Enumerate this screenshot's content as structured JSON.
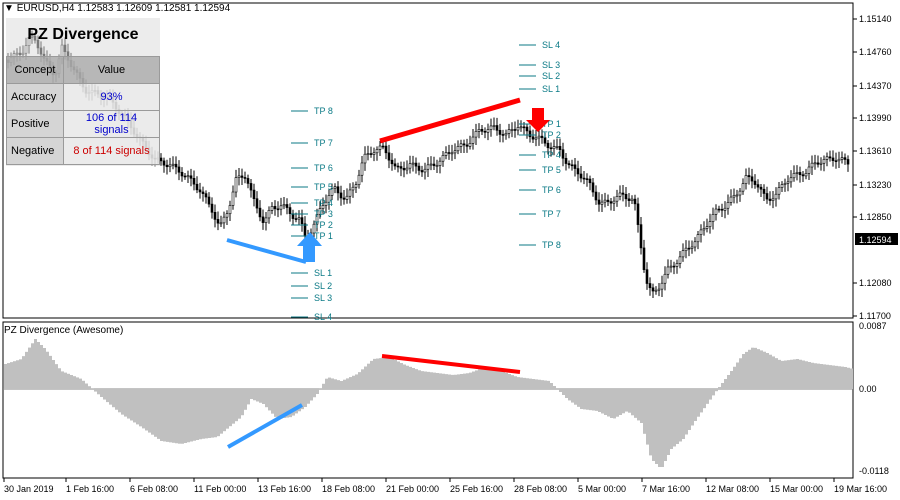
{
  "header": {
    "title": "EURUSD,H4  1.12583 1.12609 1.12581 1.12594"
  },
  "panel": {
    "title": "PZ Divergence",
    "columns": [
      "Concept",
      "Value"
    ],
    "rows": [
      {
        "concept": "Accuracy",
        "value": "93%",
        "color": "#0000cc"
      },
      {
        "concept": "Positive",
        "value": "106 of 114 signals",
        "color": "#0000cc"
      },
      {
        "concept": "Negative",
        "value": "8 of 114 signals",
        "color": "#cc0000"
      }
    ]
  },
  "price_axis": {
    "labels": [
      "1.15140",
      "1.14760",
      "1.14370",
      "1.13990",
      "1.13610",
      "1.13230",
      "1.12850",
      "1.12080",
      "1.11700"
    ],
    "current": "1.12594"
  },
  "indicator": {
    "title": "PZ Divergence (Awesome)",
    "axis": [
      "0.0087",
      "0.00",
      "-0.0118"
    ]
  },
  "time_axis": [
    "30 Jan 2019",
    "1 Feb 16:00",
    "6 Feb 08:00",
    "11 Feb 00:00",
    "13 Feb 16:00",
    "18 Feb 08:00",
    "21 Feb 00:00",
    "25 Feb 16:00",
    "28 Feb 08:00",
    "5 Mar 00:00",
    "7 Mar 16:00",
    "12 Mar 08:00",
    "15 Mar 00:00",
    "19 Mar 16:00"
  ],
  "buy_levels": {
    "tp": [
      "TP 8",
      "TP 7",
      "TP 6",
      "TP 5",
      "TP 4",
      "TP 3",
      "TP 2",
      "TP 1"
    ],
    "sl": [
      "SL 1",
      "SL 2",
      "SL 3",
      "SL 4"
    ]
  },
  "sell_levels": {
    "sl": [
      "SL 4",
      "SL 3",
      "SL 2",
      "SL 1"
    ],
    "tp": [
      "TP 1",
      "TP 2",
      "TP 4",
      "TP 5",
      "TP 6",
      "TP 7",
      "TP 8"
    ]
  },
  "colors": {
    "bull_div": "#3399ff",
    "bear_div": "#ff0000",
    "levels": "#0b7a86",
    "histogram": "#c0c0c0",
    "current_price_bg": "#000000"
  }
}
